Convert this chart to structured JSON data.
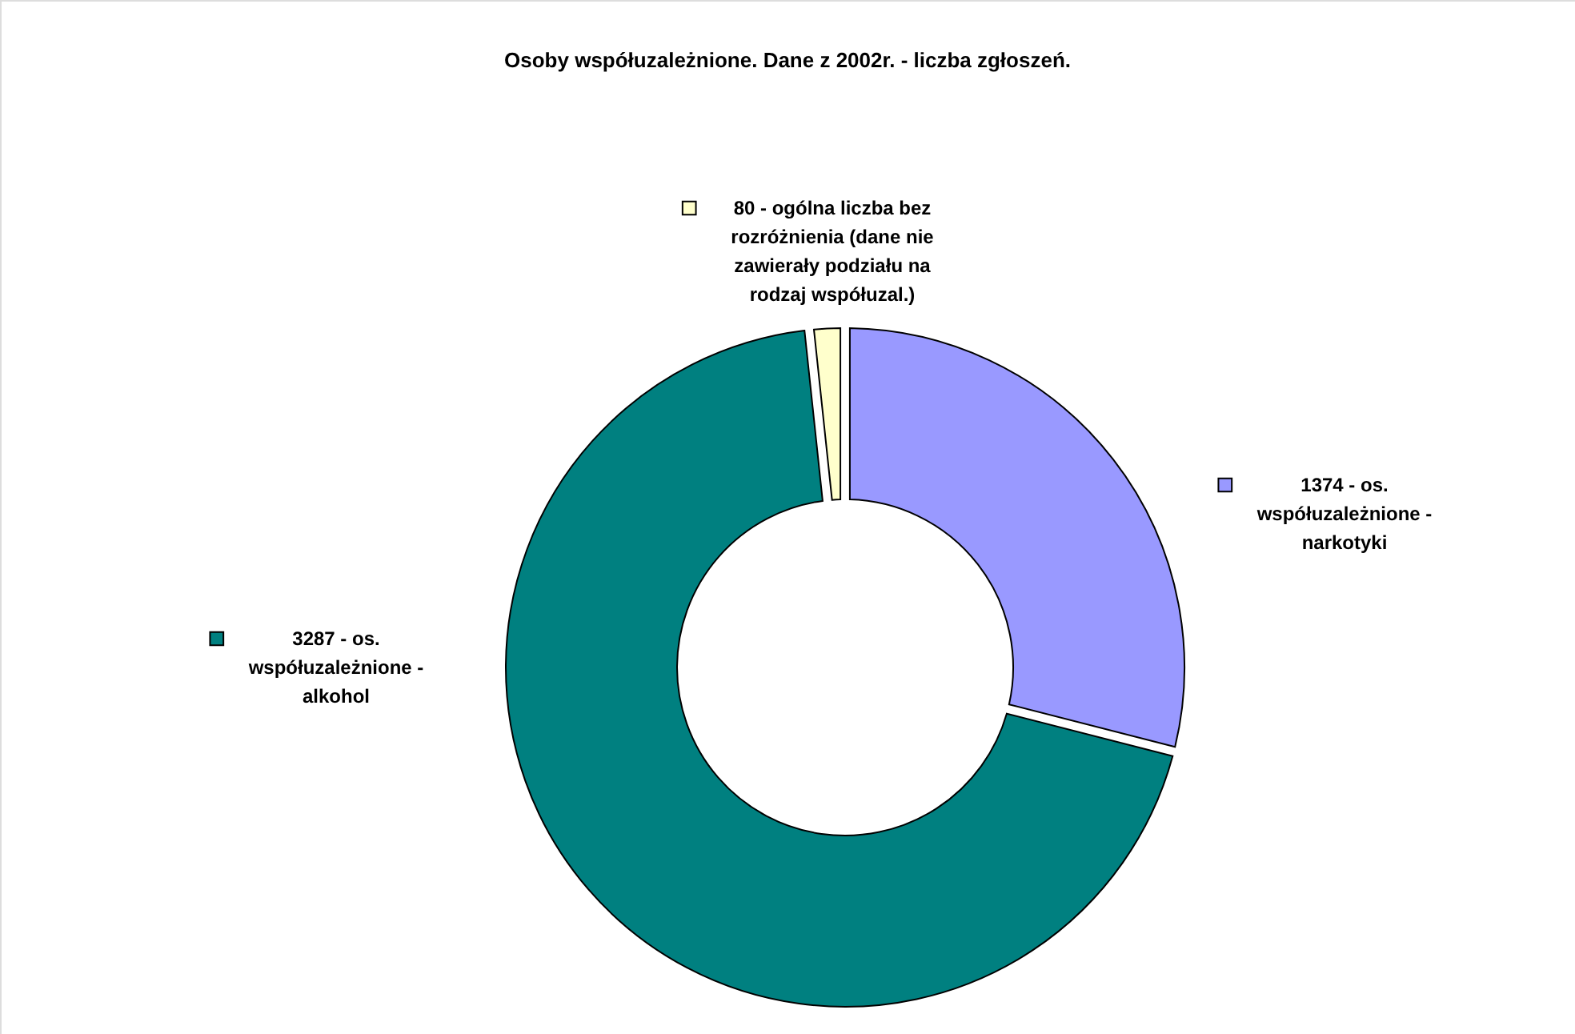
{
  "chart_data": {
    "type": "donut",
    "title": "Osoby współuzależnione. Dane z 2002r. - liczba zgłoszeń.",
    "categories": [
      "1374 - os. współuzależnione - narkotyki",
      "3287 - os. współuzależnione - alkohol",
      "80 - ogólna liczba bez rozróżnienia (dane nie zawierały podziału na rodzaj współuzal.)"
    ],
    "values": [
      1374,
      3287,
      80
    ],
    "colors": [
      "#9999ff",
      "#008080",
      "#ffffcc"
    ]
  }
}
